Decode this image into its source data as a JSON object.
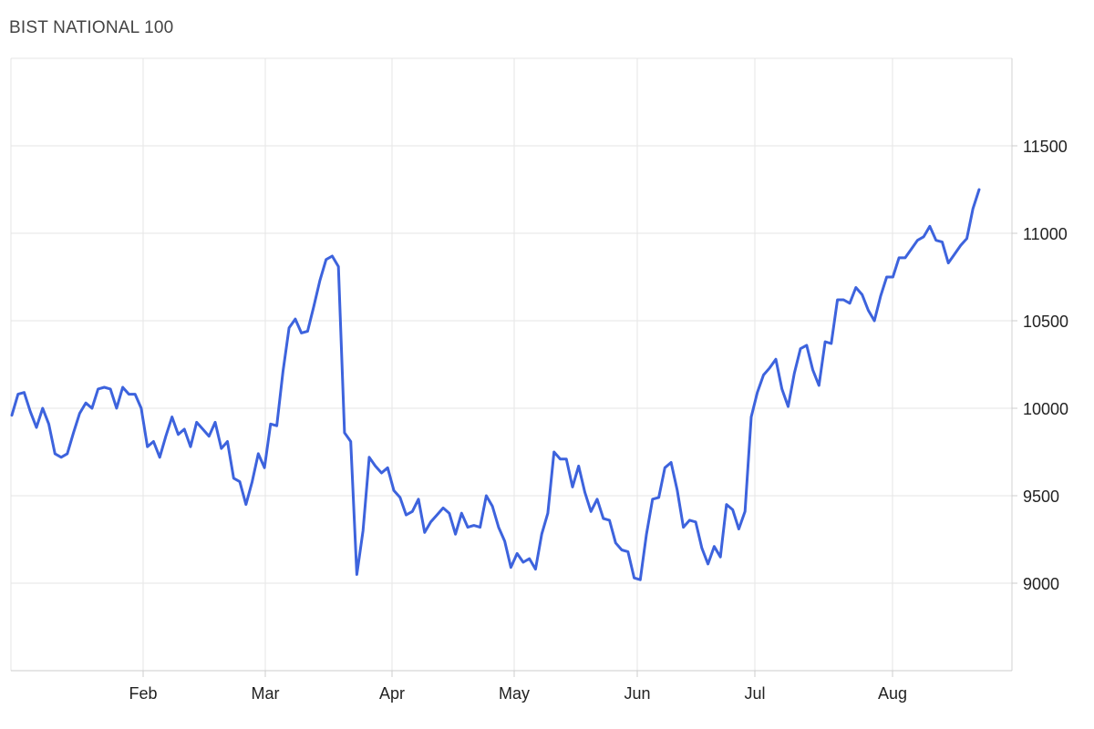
{
  "chart_data": {
    "type": "line",
    "title": "BIST NATIONAL 100",
    "xlabel": "",
    "ylabel": "",
    "x_ticks": [
      "Feb",
      "Mar",
      "Apr",
      "May",
      "Jun",
      "Jul",
      "Aug"
    ],
    "y_ticks": [
      9000,
      9500,
      10000,
      10500,
      11000,
      11500
    ],
    "ylim": [
      8500,
      12000
    ],
    "grid": true,
    "legend": "none",
    "line_color": "#3D63DD",
    "series": [
      {
        "values": [
          9960,
          10080,
          10090,
          9980,
          9890,
          10000,
          9910,
          9740,
          9720,
          9740,
          9860,
          9970,
          10030,
          10000,
          10110,
          10120,
          10110,
          10000,
          10120,
          10080,
          10080,
          10000,
          9780,
          9810,
          9720,
          9840,
          9950,
          9850,
          9880,
          9780,
          9920,
          9880,
          9840,
          9920,
          9770,
          9810,
          9600,
          9580,
          9450,
          9580,
          9740,
          9660,
          9910,
          9900,
          10210,
          10460,
          10510,
          10430,
          10440,
          10580,
          10730,
          10850,
          10870,
          10810,
          9860,
          9810,
          9050,
          9300,
          9720,
          9670,
          9630,
          9660,
          9530,
          9490,
          9390,
          9410,
          9480,
          9290,
          9350,
          9390,
          9430,
          9400,
          9280,
          9400,
          9320,
          9330,
          9320,
          9500,
          9440,
          9320,
          9240,
          9090,
          9170,
          9120,
          9140,
          9080,
          9280,
          9400,
          9750,
          9710,
          9710,
          9550,
          9670,
          9520,
          9410,
          9480,
          9370,
          9360,
          9230,
          9190,
          9180,
          9030,
          9020,
          9280,
          9480,
          9490,
          9660,
          9690,
          9530,
          9320,
          9360,
          9350,
          9200,
          9110,
          9210,
          9150,
          9450,
          9420,
          9310,
          9410,
          9950,
          10090,
          10190,
          10230,
          10280,
          10110,
          10010,
          10200,
          10340,
          10360,
          10220,
          10130,
          10380,
          10370,
          10620,
          10620,
          10600,
          10690,
          10650,
          10560,
          10500,
          10640,
          10750,
          10750,
          10860,
          10860,
          10910,
          10960,
          10980,
          11040,
          10960,
          10950,
          10830,
          10880,
          10930,
          10970,
          11140,
          11250
        ]
      }
    ]
  }
}
